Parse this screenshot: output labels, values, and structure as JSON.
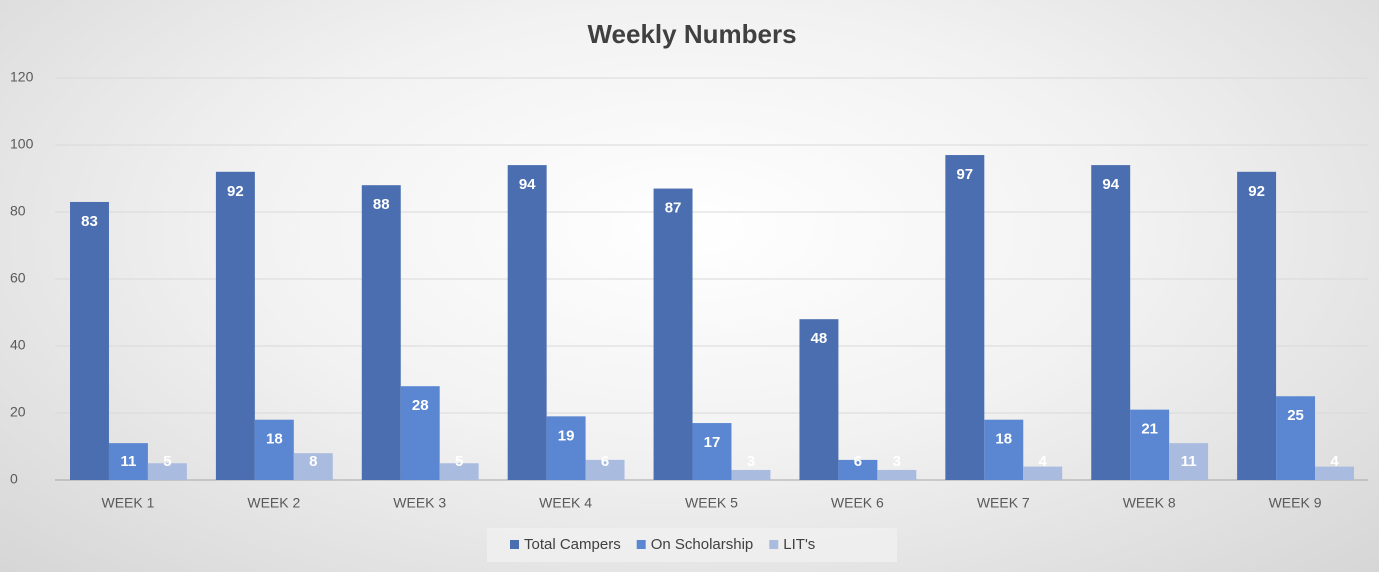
{
  "chart_data": {
    "type": "bar",
    "title": "Weekly Numbers",
    "categories": [
      "WEEK 1",
      "WEEK 2",
      "WEEK 3",
      "WEEK 4",
      "WEEK 5",
      "WEEK 6",
      "WEEK 7",
      "WEEK 8",
      "WEEK 9"
    ],
    "series": [
      {
        "name": "Total Campers",
        "color": "#4a6eb0",
        "values": [
          83,
          92,
          88,
          94,
          87,
          48,
          97,
          94,
          92
        ]
      },
      {
        "name": "On Scholarship",
        "color": "#5b87d2",
        "values": [
          11,
          18,
          28,
          19,
          17,
          6,
          18,
          21,
          25
        ]
      },
      {
        "name": "LIT's",
        "color": "#aabbe0",
        "values": [
          5,
          8,
          5,
          6,
          3,
          3,
          4,
          11,
          4
        ]
      }
    ],
    "ylim": [
      0,
      120
    ],
    "yticks": [
      0,
      20,
      40,
      60,
      80,
      100,
      120
    ],
    "grid": true,
    "legend": "bottom"
  }
}
